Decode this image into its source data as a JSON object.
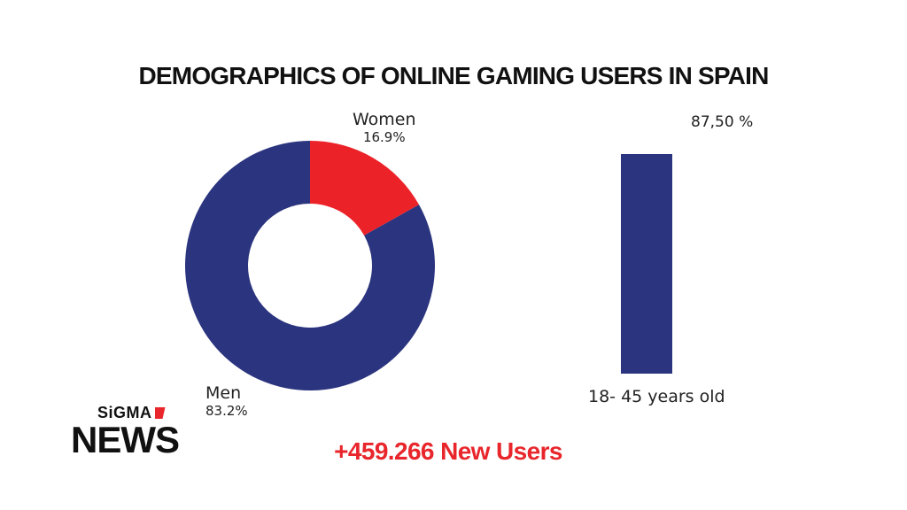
{
  "title": "DEMOGRAPHICS OF ONLINE GAMING USERS IN SPAIN",
  "headline_stat": "+459.266 New Users",
  "logo": {
    "top": "SiGMA",
    "bottom": "NEWS"
  },
  "colors": {
    "men": "#2b347e",
    "women": "#ec2229",
    "accent": "#e8262b",
    "bar": "#2b347e"
  },
  "chart_data": [
    {
      "type": "pie",
      "variant": "donut",
      "slices": [
        {
          "label": "Women",
          "value": 16.9,
          "display": "16.9%"
        },
        {
          "label": "Men",
          "value": 83.2,
          "display": "83.2%"
        }
      ]
    },
    {
      "type": "bar",
      "categories": [
        "18- 45 years old"
      ],
      "values": [
        87.5
      ],
      "value_labels": [
        "87,50 %"
      ],
      "ylim": [
        0,
        100
      ]
    }
  ]
}
